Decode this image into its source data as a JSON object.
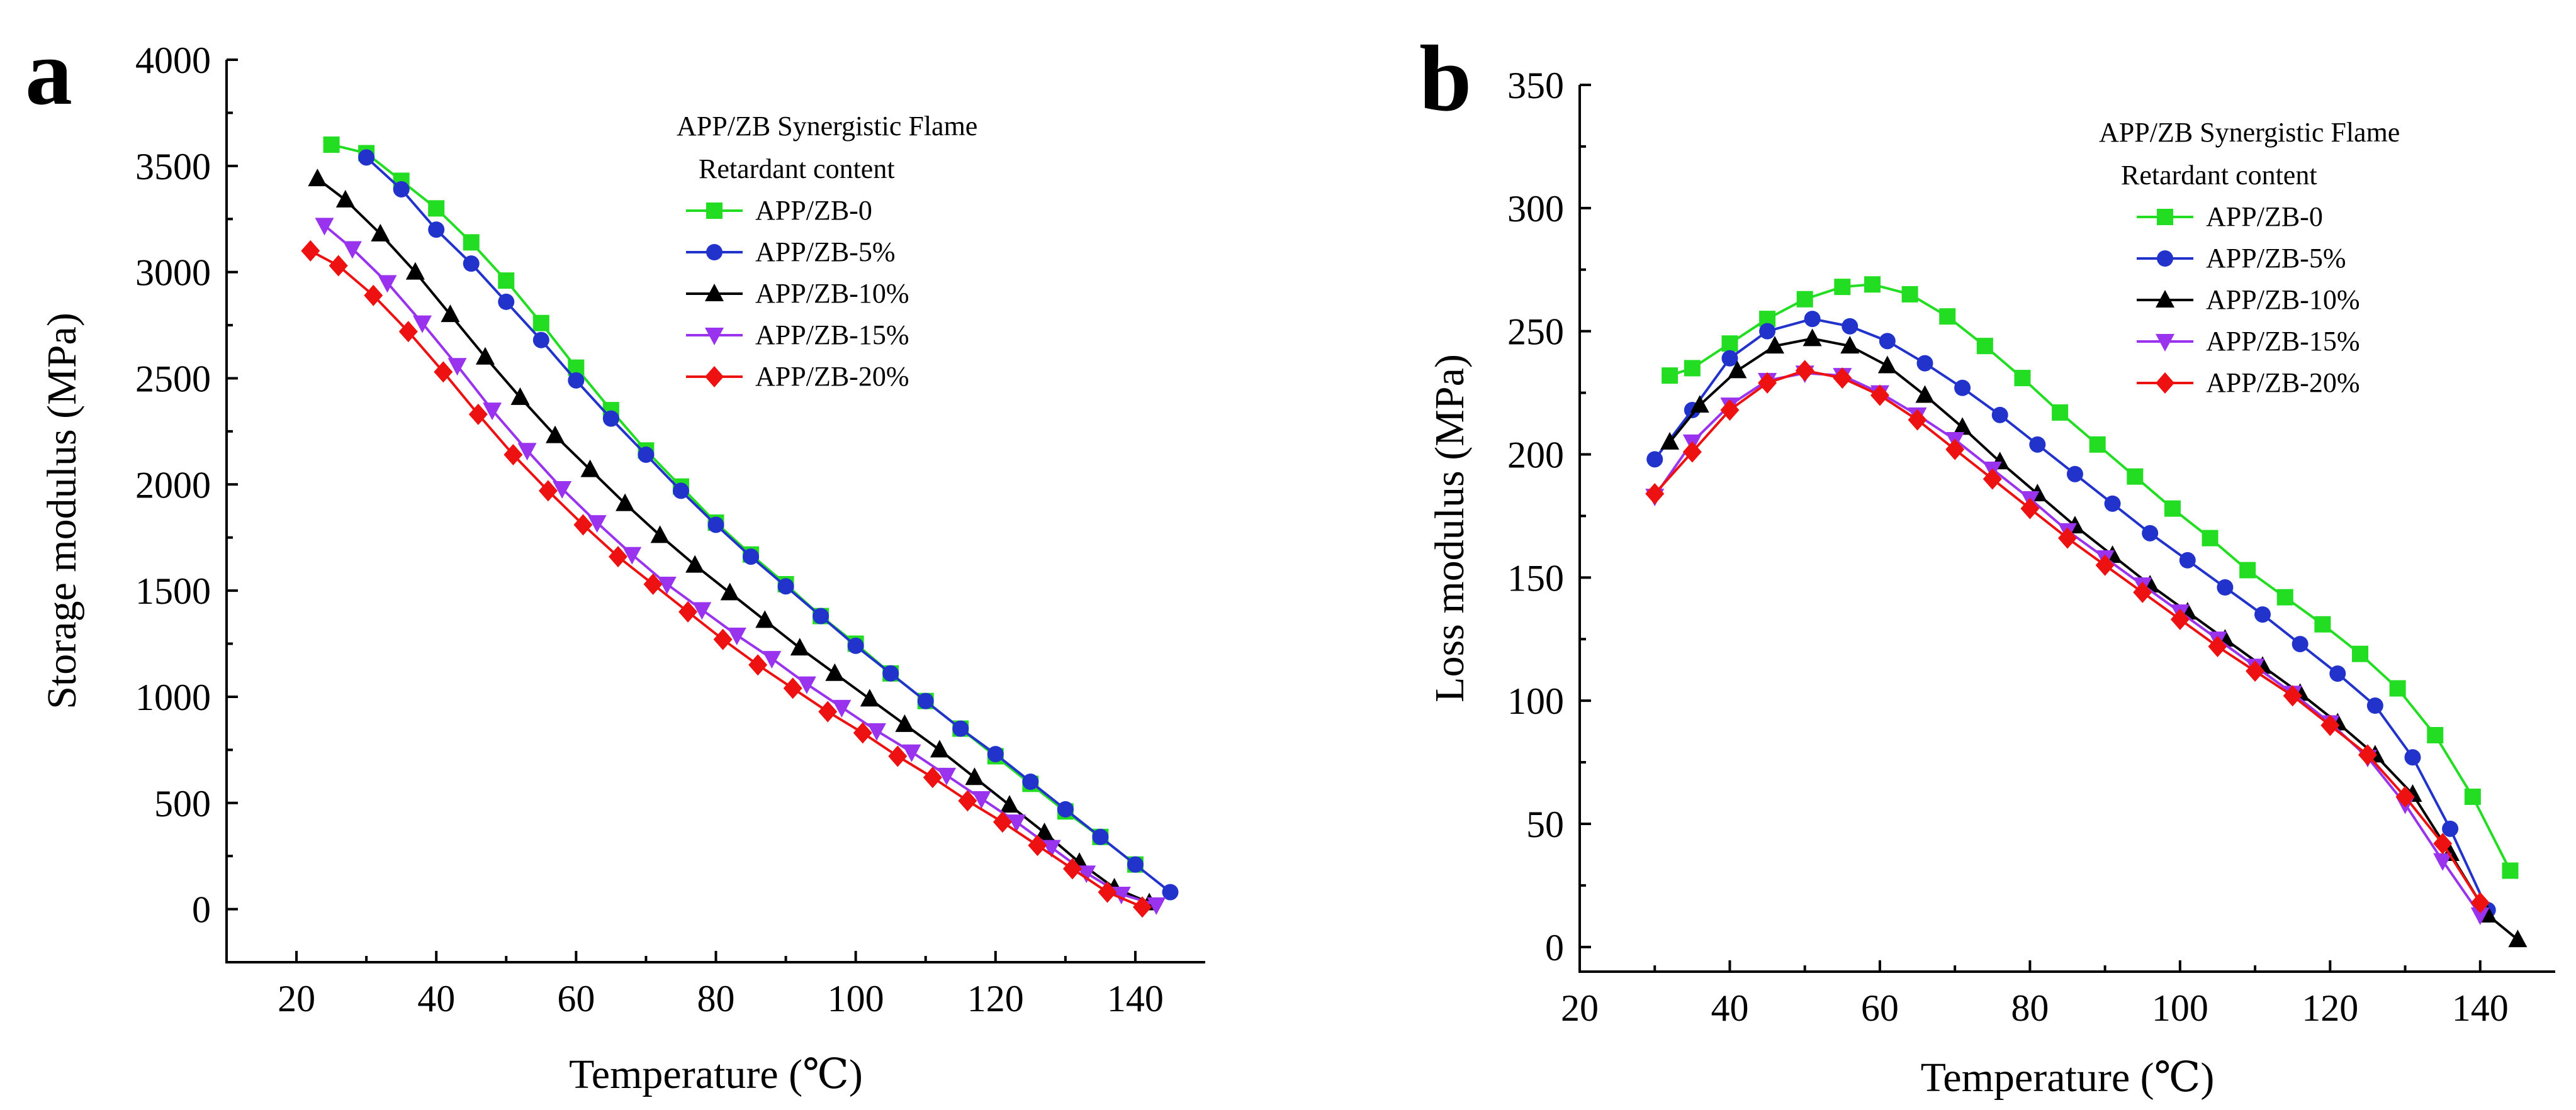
{
  "chart_data": [
    {
      "type": "line",
      "panel_label": "a",
      "title": "",
      "xlabel": "Temperature (℃)",
      "ylabel": "Storage modulus (MPa)",
      "xlim": [
        10,
        150
      ],
      "ylim": [
        -250,
        4000
      ],
      "xticks": [
        "20",
        "40",
        "60",
        "80",
        "100",
        "120",
        "140"
      ],
      "yticks": [
        "0",
        "500",
        "1000",
        "1500",
        "2000",
        "2500",
        "3000",
        "3500",
        "4000"
      ],
      "legend": {
        "title_line1": "APP/ZB Synergistic Flame",
        "title_line2": "Retardant content",
        "placement": "top-right"
      },
      "series": [
        {
          "name": "APP/ZB-0",
          "color": "#22dd22",
          "marker": "square",
          "x": [
            25,
            30,
            35,
            40,
            45,
            50,
            55,
            60,
            65,
            70,
            75,
            80,
            85,
            90,
            95,
            100,
            105,
            110,
            115,
            120,
            125,
            130,
            135,
            140
          ],
          "y": [
            3600,
            3560,
            3430,
            3300,
            3140,
            2960,
            2760,
            2550,
            2350,
            2160,
            1990,
            1820,
            1670,
            1530,
            1380,
            1250,
            1110,
            980,
            850,
            720,
            590,
            460,
            340,
            210
          ]
        },
        {
          "name": "APP/ZB-5%",
          "color": "#2233cc",
          "marker": "circle",
          "x": [
            30,
            35,
            40,
            45,
            50,
            55,
            60,
            65,
            70,
            75,
            80,
            85,
            90,
            95,
            100,
            105,
            110,
            115,
            120,
            125,
            130,
            135,
            140,
            145
          ],
          "y": [
            3540,
            3390,
            3200,
            3040,
            2860,
            2680,
            2490,
            2310,
            2140,
            1970,
            1810,
            1660,
            1520,
            1380,
            1240,
            1110,
            980,
            850,
            730,
            600,
            470,
            340,
            210,
            80
          ]
        },
        {
          "name": "APP/ZB-10%",
          "color": "#000000",
          "marker": "triangle-up",
          "x": [
            23,
            27,
            32,
            37,
            42,
            47,
            52,
            57,
            62,
            67,
            72,
            77,
            82,
            87,
            92,
            97,
            102,
            107,
            112,
            117,
            122,
            127,
            132,
            137,
            142
          ],
          "y": [
            3440,
            3340,
            3180,
            3000,
            2800,
            2600,
            2410,
            2230,
            2070,
            1910,
            1760,
            1620,
            1490,
            1360,
            1230,
            1110,
            990,
            870,
            750,
            620,
            490,
            360,
            220,
            100,
            30
          ]
        },
        {
          "name": "APP/ZB-15%",
          "color": "#9933ee",
          "marker": "triangle-down",
          "x": [
            24,
            28,
            33,
            38,
            43,
            48,
            53,
            58,
            63,
            68,
            73,
            78,
            83,
            88,
            93,
            98,
            103,
            108,
            113,
            118,
            123,
            128,
            133,
            138,
            143
          ],
          "y": [
            3220,
            3110,
            2950,
            2760,
            2560,
            2350,
            2160,
            1980,
            1820,
            1670,
            1530,
            1410,
            1290,
            1180,
            1060,
            950,
            840,
            740,
            630,
            520,
            410,
            290,
            170,
            70,
            20
          ]
        },
        {
          "name": "APP/ZB-20%",
          "color": "#ee1111",
          "marker": "diamond",
          "x": [
            22,
            26,
            31,
            36,
            41,
            46,
            51,
            56,
            61,
            66,
            71,
            76,
            81,
            86,
            91,
            96,
            101,
            106,
            111,
            116,
            121,
            126,
            131,
            136,
            141
          ],
          "y": [
            3100,
            3030,
            2890,
            2720,
            2530,
            2330,
            2140,
            1970,
            1810,
            1660,
            1530,
            1400,
            1270,
            1150,
            1040,
            930,
            830,
            720,
            620,
            510,
            410,
            300,
            190,
            80,
            10
          ]
        }
      ]
    },
    {
      "type": "line",
      "panel_label": "b",
      "title": "",
      "xlabel": "Temperature (℃)",
      "ylabel": "Loss modulus (MPa)",
      "xlim": [
        20,
        150
      ],
      "ylim": [
        -10,
        350
      ],
      "xticks": [
        "20",
        "40",
        "60",
        "80",
        "100",
        "120",
        "140"
      ],
      "yticks": [
        "0",
        "50",
        "100",
        "150",
        "200",
        "250",
        "300",
        "350"
      ],
      "legend": {
        "title_line1": "APP/ZB Synergistic Flame",
        "title_line2": "Retardant content",
        "placement": "top-right"
      },
      "series": [
        {
          "name": "APP/ZB-0",
          "color": "#22dd22",
          "marker": "square",
          "x": [
            32,
            35,
            40,
            45,
            50,
            55,
            59,
            64,
            69,
            74,
            79,
            84,
            89,
            94,
            99,
            104,
            109,
            114,
            119,
            124,
            129,
            134,
            139,
            144
          ],
          "y": [
            232,
            235,
            245,
            255,
            263,
            268,
            269,
            265,
            256,
            244,
            231,
            217,
            204,
            191,
            178,
            166,
            153,
            142,
            131,
            119,
            105,
            86,
            61,
            31
          ]
        },
        {
          "name": "APP/ZB-5%",
          "color": "#2233cc",
          "marker": "circle",
          "x": [
            30,
            35,
            40,
            45,
            51,
            56,
            61,
            66,
            71,
            76,
            81,
            86,
            91,
            96,
            101,
            106,
            111,
            116,
            121,
            126,
            131,
            136,
            141
          ],
          "y": [
            198,
            218,
            239,
            250,
            255,
            252,
            246,
            237,
            227,
            216,
            204,
            192,
            180,
            168,
            157,
            146,
            135,
            123,
            111,
            98,
            77,
            48,
            15
          ]
        },
        {
          "name": "APP/ZB-10%",
          "color": "#000000",
          "marker": "triangle-up",
          "x": [
            32,
            36,
            41,
            46,
            51,
            56,
            61,
            66,
            71,
            76,
            81,
            86,
            91,
            96,
            101,
            106,
            111,
            116,
            121,
            126,
            131,
            136,
            141,
            145
          ],
          "y": [
            205,
            220,
            234,
            244,
            247,
            244,
            236,
            224,
            211,
            197,
            184,
            171,
            159,
            147,
            136,
            125,
            114,
            103,
            91,
            78,
            62,
            38,
            13,
            3
          ]
        },
        {
          "name": "APP/ZB-15%",
          "color": "#9933ee",
          "marker": "triangle-down",
          "x": [
            30,
            35,
            40,
            45,
            50,
            55,
            60,
            65,
            70,
            75,
            80,
            85,
            90,
            95,
            100,
            105,
            110,
            115,
            120,
            125,
            130,
            135,
            140
          ],
          "y": [
            183,
            205,
            220,
            230,
            233,
            232,
            225,
            216,
            206,
            194,
            182,
            169,
            158,
            147,
            136,
            125,
            114,
            103,
            91,
            77,
            58,
            35,
            13
          ]
        },
        {
          "name": "APP/ZB-20%",
          "color": "#ee1111",
          "marker": "diamond",
          "x": [
            30,
            35,
            40,
            45,
            50,
            55,
            60,
            65,
            70,
            75,
            80,
            85,
            90,
            95,
            100,
            105,
            110,
            115,
            120,
            125,
            130,
            135,
            140
          ],
          "y": [
            184,
            201,
            218,
            229,
            234,
            231,
            224,
            214,
            202,
            190,
            178,
            166,
            155,
            144,
            133,
            122,
            112,
            102,
            90,
            78,
            61,
            42,
            18
          ]
        }
      ]
    }
  ]
}
